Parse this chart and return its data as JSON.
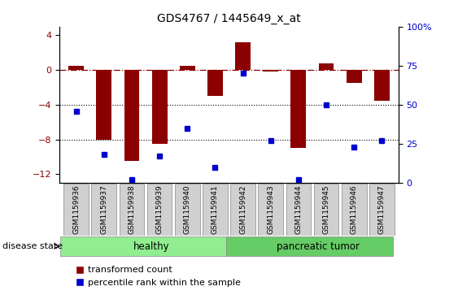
{
  "title": "GDS4767 / 1445649_x_at",
  "samples": [
    "GSM1159936",
    "GSM1159937",
    "GSM1159938",
    "GSM1159939",
    "GSM1159940",
    "GSM1159941",
    "GSM1159942",
    "GSM1159943",
    "GSM1159944",
    "GSM1159945",
    "GSM1159946",
    "GSM1159947"
  ],
  "transformed_count": [
    0.5,
    -8.0,
    -10.5,
    -8.5,
    0.5,
    -3.0,
    3.2,
    -0.2,
    -9.0,
    0.8,
    -1.5,
    -3.5
  ],
  "percentile_rank": [
    46,
    18,
    2,
    17,
    35,
    10,
    70,
    27,
    2,
    50,
    23,
    27
  ],
  "groups": [
    {
      "label": "healthy",
      "start": 0,
      "end": 6,
      "color": "#90EE90"
    },
    {
      "label": "pancreatic tumor",
      "start": 6,
      "end": 12,
      "color": "#66CC66"
    }
  ],
  "bar_color": "#8B0000",
  "point_color": "#0000CD",
  "ylim_left": [
    -13,
    5
  ],
  "ylim_right": [
    0,
    100
  ],
  "yticks_left": [
    4,
    0,
    -4,
    -8,
    -12
  ],
  "yticks_right": [
    100,
    75,
    50,
    25,
    0
  ],
  "hline_y": 0,
  "dotted_lines": [
    -4,
    -8
  ],
  "background_color": "#ffffff",
  "plot_bg_color": "#ffffff",
  "label_transformed": "transformed count",
  "label_percentile": "percentile rank within the sample"
}
